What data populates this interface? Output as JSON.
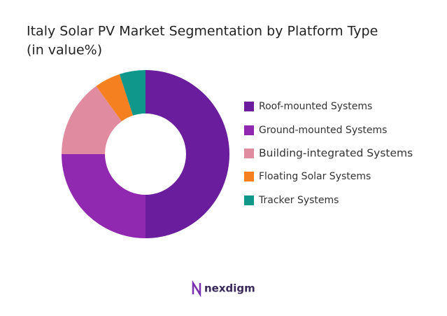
{
  "chart_data": {
    "type": "donut",
    "title": "Italy Solar PV Market Segmentation by Platform Type",
    "subtitle": "(in value%)",
    "categories": [
      "Roof-mounted Systems",
      "Ground-mounted Systems",
      "Building-integrated Systems",
      "Floating Solar Systems",
      "Tracker Systems"
    ],
    "values": [
      50,
      25,
      15,
      5,
      5
    ],
    "colors": [
      "#6a1d9c",
      "#9128b0",
      "#e08ba0",
      "#f5801f",
      "#0f978b"
    ],
    "legend": "right"
  },
  "logo_text": "nexdigm"
}
